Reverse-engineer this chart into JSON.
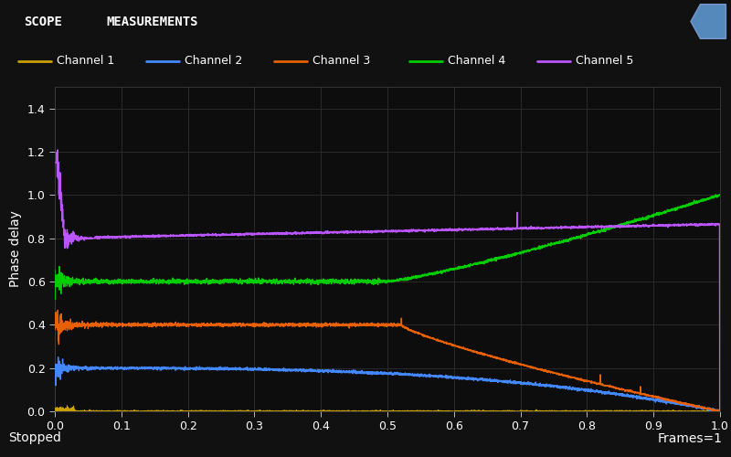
{
  "title_bar_color": "#1e3f6e",
  "title_bar_text1": "SCOPE",
  "title_bar_text2": "MEASUREMENTS",
  "bg_color": "#111111",
  "plot_bg_color": "#0d0d0d",
  "grid_color": "#2a2a2a",
  "text_color": "#ffffff",
  "ylabel": "Phase delay",
  "xlim": [
    0,
    1
  ],
  "ylim": [
    0,
    1.5
  ],
  "yticks": [
    0,
    0.2,
    0.4,
    0.6,
    0.8,
    1.0,
    1.2,
    1.4
  ],
  "xticks": [
    0,
    0.1,
    0.2,
    0.3,
    0.4,
    0.5,
    0.6,
    0.7,
    0.8,
    0.9,
    1.0
  ],
  "ch_names": [
    "Channel 1",
    "Channel 2",
    "Channel 3",
    "Channel 4",
    "Channel 5"
  ],
  "ch_colors": [
    "#c8a000",
    "#4488ff",
    "#e86000",
    "#00cc00",
    "#bb55ff"
  ],
  "status_left": "Stopped",
  "status_right": "Frames=1"
}
